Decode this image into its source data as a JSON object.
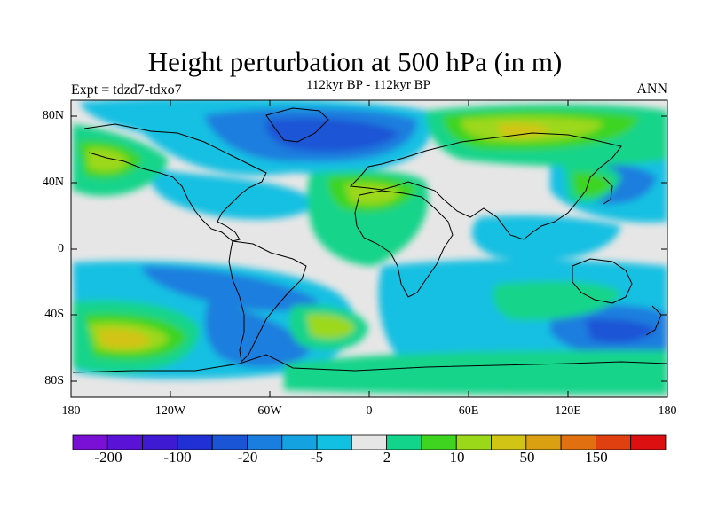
{
  "title": "Height perturbation at 500 hPa (in m)",
  "subtitle": "112kyr BP - 112kyr BP",
  "left_label": "Expt = tdzd7-tdxo7",
  "right_label": "ANN",
  "map": {
    "projection": "cylindrical-equidistant",
    "lat_labels": [
      "80N",
      "40N",
      "0",
      "40S",
      "80S"
    ],
    "lon_labels": [
      "180",
      "120W",
      "60W",
      "0",
      "60E",
      "120E",
      "180"
    ],
    "background_color": "#e6e6e6"
  },
  "colorbar": {
    "labels": [
      "-200",
      "-100",
      "-20",
      "-5",
      "2",
      "10",
      "50",
      "150"
    ],
    "colors": [
      "#7a10d6",
      "#5a12d6",
      "#3e1ad2",
      "#2030d4",
      "#1a55d6",
      "#1a7ede",
      "#14a2e0",
      "#12c0e2",
      "#e6e6e6",
      "#12d48a",
      "#3ed420",
      "#9cd81a",
      "#d2c414",
      "#daa012",
      "#e07010",
      "#e04010",
      "#dc1010"
    ]
  }
}
